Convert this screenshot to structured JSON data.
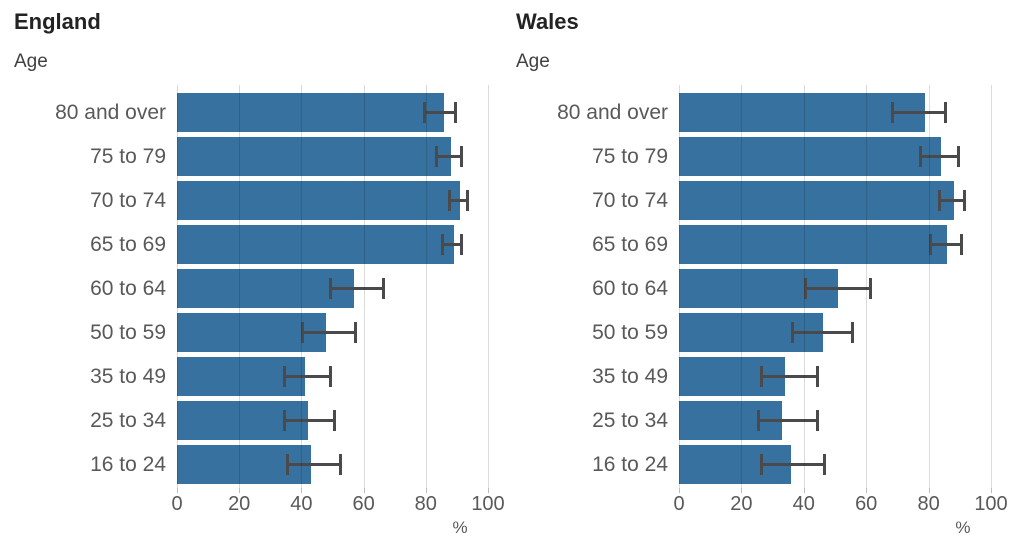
{
  "colors": {
    "bar": "#36719F",
    "error_bar": "#4A4A4C",
    "gridline": "#D9D9D9",
    "title": "#232323",
    "age_axis_label": "#414042",
    "category_label": "#58595B",
    "tick_label": "#595959"
  },
  "chart_data": [
    {
      "type": "bar",
      "orientation": "horizontal",
      "title": "England",
      "ylabel": "Age",
      "xlabel": "%",
      "xlim": [
        0,
        100
      ],
      "xticks": [
        0,
        20,
        40,
        60,
        80,
        100
      ],
      "grid": true,
      "legend": "none",
      "error_bars": true,
      "categories": [
        "80 and over",
        "75 to 79",
        "70 to 74",
        "65 to 69",
        "60 to 64",
        "50 to 59",
        "35 to 49",
        "25 to 34",
        "16 to 24"
      ],
      "values": [
        86,
        88,
        91,
        89,
        57,
        48,
        41,
        42,
        43
      ],
      "ci_low": [
        79,
        83,
        87,
        85,
        49,
        40,
        34,
        34,
        35
      ],
      "ci_high": [
        90,
        92,
        94,
        92,
        67,
        58,
        50,
        51,
        53
      ]
    },
    {
      "type": "bar",
      "orientation": "horizontal",
      "title": "Wales",
      "ylabel": "Age",
      "xlabel": "%",
      "xlim": [
        0,
        100
      ],
      "xticks": [
        0,
        20,
        40,
        60,
        80,
        100
      ],
      "grid": true,
      "legend": "none",
      "error_bars": true,
      "categories": [
        "80 and over",
        "75 to 79",
        "70 to 74",
        "65 to 69",
        "60 to 64",
        "50 to 59",
        "35 to 49",
        "25 to 34",
        "16 to 24"
      ],
      "values": [
        79,
        84,
        88,
        86,
        51,
        46,
        34,
        33,
        36
      ],
      "ci_low": [
        68,
        77,
        83,
        80,
        40,
        36,
        26,
        25,
        26
      ],
      "ci_high": [
        86,
        90,
        92,
        91,
        62,
        56,
        45,
        45,
        47
      ]
    }
  ]
}
